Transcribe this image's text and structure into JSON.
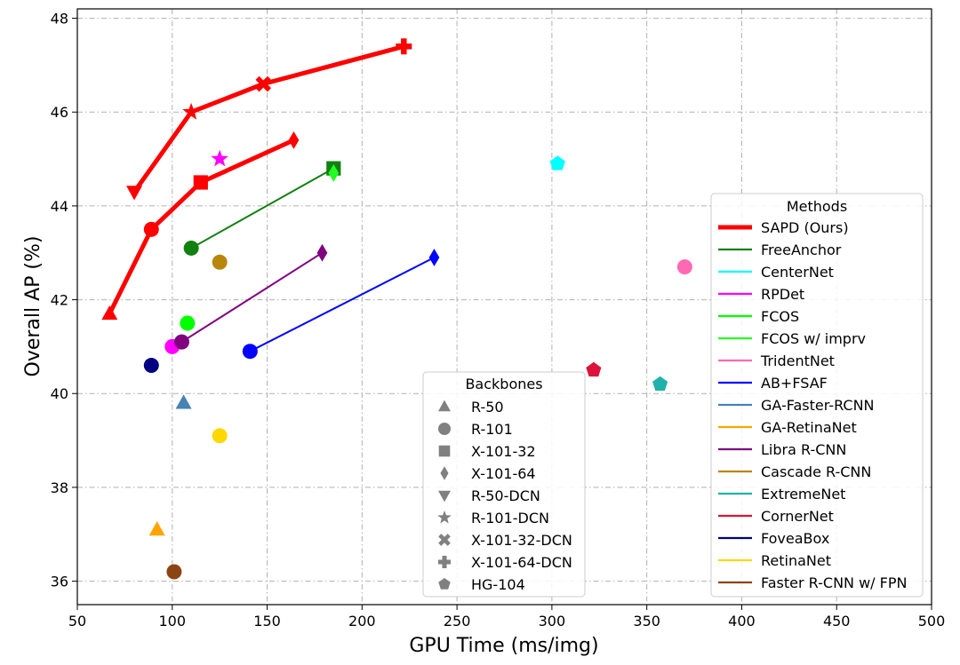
{
  "chart_data": {
    "type": "scatter",
    "xlabel": "GPU Time (ms/img)",
    "ylabel": "Overall AP (%)",
    "xlim": [
      50,
      500
    ],
    "ylim": [
      35.5,
      48.2
    ],
    "xticks": [
      50,
      100,
      150,
      200,
      250,
      300,
      350,
      400,
      450,
      500
    ],
    "yticks": [
      36,
      38,
      40,
      42,
      44,
      46,
      48
    ],
    "grid": true,
    "methods_legend_title": "Methods",
    "backbones_legend_title": "Backbones",
    "colors": {
      "SAPD (Ours)": "#ff0000",
      "FreeAnchor": "#118011",
      "CenterNet": "#00ffff",
      "RPDet": "#ff00ff",
      "FCOS": "#00ff00",
      "FCOS w/ imprv": "#22ff22",
      "TridentNet": "#ff69b4",
      "AB+FSAF": "#0000ff",
      "GA-Faster-RCNN": "#4682b4",
      "GA-RetinaNet": "#ffa500",
      "Libra R-CNN": "#800080",
      "Cascade R-CNN": "#b8860b",
      "ExtremeNet": "#20b2aa",
      "CornerNet": "#dc143c",
      "FoveaBox": "#000080",
      "RetinaNet": "#ffd700",
      "Faster R-CNN w/ FPN": "#8b4513"
    },
    "methods": [
      {
        "name": "SAPD (Ours)",
        "line_width": 5
      },
      {
        "name": "FreeAnchor"
      },
      {
        "name": "CenterNet"
      },
      {
        "name": "RPDet"
      },
      {
        "name": "FCOS"
      },
      {
        "name": "FCOS w/ imprv"
      },
      {
        "name": "TridentNet"
      },
      {
        "name": "AB+FSAF"
      },
      {
        "name": "GA-Faster-RCNN"
      },
      {
        "name": "GA-RetinaNet"
      },
      {
        "name": "Libra R-CNN"
      },
      {
        "name": "Cascade R-CNN"
      },
      {
        "name": "ExtremeNet"
      },
      {
        "name": "CornerNet"
      },
      {
        "name": "FoveaBox"
      },
      {
        "name": "RetinaNet"
      },
      {
        "name": "Faster R-CNN w/ FPN"
      }
    ],
    "backbones": [
      {
        "name": "R-50",
        "marker": "triangle-up"
      },
      {
        "name": "R-101",
        "marker": "circle"
      },
      {
        "name": "X-101-32",
        "marker": "square"
      },
      {
        "name": "X-101-64",
        "marker": "diamond"
      },
      {
        "name": "R-50-DCN",
        "marker": "triangle-down"
      },
      {
        "name": "R-101-DCN",
        "marker": "star"
      },
      {
        "name": "X-101-32-DCN",
        "marker": "x"
      },
      {
        "name": "X-101-64-DCN",
        "marker": "plus"
      },
      {
        "name": "HG-104",
        "marker": "pentagon"
      }
    ],
    "series": [
      {
        "name": "SAPD (Ours)",
        "connect": [
          [
            [
              67,
              41.7
            ],
            [
              89,
              43.5
            ],
            [
              115,
              44.5
            ],
            [
              164,
              45.4
            ]
          ],
          [
            [
              80,
              44.3
            ],
            [
              110,
              46.0
            ],
            [
              148,
              46.6
            ],
            [
              222,
              47.4
            ]
          ]
        ],
        "points": [
          {
            "x": 67,
            "y": 41.7,
            "backbone": "R-50"
          },
          {
            "x": 89,
            "y": 43.5,
            "backbone": "R-101"
          },
          {
            "x": 115,
            "y": 44.5,
            "backbone": "X-101-32"
          },
          {
            "x": 164,
            "y": 45.4,
            "backbone": "X-101-64"
          },
          {
            "x": 80,
            "y": 44.3,
            "backbone": "R-50-DCN"
          },
          {
            "x": 110,
            "y": 46.0,
            "backbone": "R-101-DCN"
          },
          {
            "x": 148,
            "y": 46.6,
            "backbone": "X-101-32-DCN"
          },
          {
            "x": 222,
            "y": 47.4,
            "backbone": "X-101-64-DCN"
          }
        ]
      },
      {
        "name": "FreeAnchor",
        "connect": [
          [
            [
              110,
              43.1
            ],
            [
              185,
              44.8
            ]
          ]
        ],
        "points": [
          {
            "x": 110,
            "y": 43.1,
            "backbone": "R-101"
          },
          {
            "x": 185,
            "y": 44.8,
            "backbone": "X-101-32"
          }
        ]
      },
      {
        "name": "CenterNet",
        "points": [
          {
            "x": 303,
            "y": 44.9,
            "backbone": "HG-104"
          }
        ]
      },
      {
        "name": "RPDet",
        "points": [
          {
            "x": 100,
            "y": 41.0,
            "backbone": "R-101"
          },
          {
            "x": 125,
            "y": 45.0,
            "backbone": "R-101-DCN"
          }
        ]
      },
      {
        "name": "FCOS",
        "points": [
          {
            "x": 108,
            "y": 41.5,
            "backbone": "R-101"
          }
        ]
      },
      {
        "name": "FCOS w/ imprv",
        "points": [
          {
            "x": 185,
            "y": 44.7,
            "backbone": "X-101-64"
          }
        ]
      },
      {
        "name": "TridentNet",
        "points": [
          {
            "x": 370,
            "y": 42.7,
            "backbone": "R-101"
          }
        ]
      },
      {
        "name": "AB+FSAF",
        "connect": [
          [
            [
              141,
              40.9
            ],
            [
              238,
              42.9
            ]
          ]
        ],
        "points": [
          {
            "x": 141,
            "y": 40.9,
            "backbone": "R-101"
          },
          {
            "x": 238,
            "y": 42.9,
            "backbone": "X-101-64"
          }
        ]
      },
      {
        "name": "GA-Faster-RCNN",
        "points": [
          {
            "x": 106,
            "y": 39.8,
            "backbone": "R-50"
          }
        ]
      },
      {
        "name": "GA-RetinaNet",
        "points": [
          {
            "x": 92,
            "y": 37.1,
            "backbone": "R-50"
          }
        ]
      },
      {
        "name": "Libra R-CNN",
        "connect": [
          [
            [
              105,
              41.1
            ],
            [
              179,
              43.0
            ]
          ]
        ],
        "points": [
          {
            "x": 105,
            "y": 41.1,
            "backbone": "R-101"
          },
          {
            "x": 179,
            "y": 43.0,
            "backbone": "X-101-64"
          }
        ]
      },
      {
        "name": "Cascade R-CNN",
        "points": [
          {
            "x": 125,
            "y": 42.8,
            "backbone": "R-101"
          }
        ]
      },
      {
        "name": "ExtremeNet",
        "points": [
          {
            "x": 357,
            "y": 40.2,
            "backbone": "HG-104"
          }
        ]
      },
      {
        "name": "CornerNet",
        "points": [
          {
            "x": 322,
            "y": 40.5,
            "backbone": "HG-104"
          }
        ]
      },
      {
        "name": "FoveaBox",
        "points": [
          {
            "x": 89,
            "y": 40.6,
            "backbone": "R-101"
          }
        ]
      },
      {
        "name": "RetinaNet",
        "points": [
          {
            "x": 125,
            "y": 39.1,
            "backbone": "R-101"
          }
        ]
      },
      {
        "name": "Faster R-CNN w/ FPN",
        "points": [
          {
            "x": 101,
            "y": 36.2,
            "backbone": "R-101"
          }
        ]
      }
    ]
  }
}
